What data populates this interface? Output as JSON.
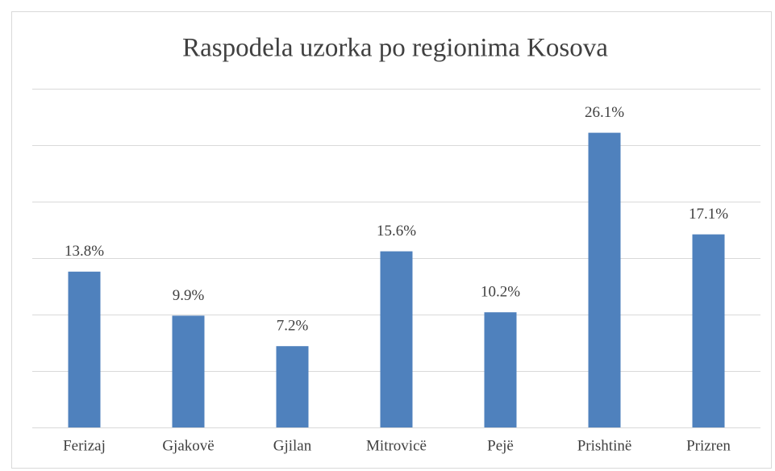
{
  "chart_data": {
    "type": "bar",
    "title": "Raspodela uzorka po regionima Kosova",
    "categories": [
      "Ferizaj",
      "Gjakovë",
      "Gjilan",
      "Mitrovicë",
      "Pejë",
      "Prishtinë",
      "Prizren"
    ],
    "values": [
      13.8,
      9.9,
      7.2,
      15.6,
      10.2,
      26.1,
      17.1
    ],
    "value_labels": [
      "13.8%",
      "9.9%",
      "7.2%",
      "15.6%",
      "10.2%",
      "26.1%",
      "17.1%"
    ],
    "color": "#4f81bd",
    "ylim": [
      0,
      30
    ],
    "yticks": [
      0,
      5,
      10,
      15,
      20,
      25,
      30
    ],
    "grid": true
  }
}
